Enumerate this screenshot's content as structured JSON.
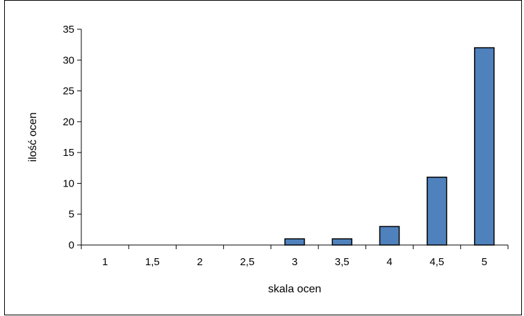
{
  "chart_data": {
    "type": "bar",
    "categories": [
      "1",
      "1,5",
      "2",
      "2,5",
      "3",
      "3,5",
      "4",
      "4,5",
      "5"
    ],
    "values": [
      0,
      0,
      0,
      0,
      1,
      1,
      3,
      11,
      32
    ],
    "title": "",
    "xlabel": "skala ocen",
    "ylabel": "ilość ocen",
    "ylim": [
      0,
      35
    ],
    "yticks": [
      "0",
      "5",
      "10",
      "15",
      "20",
      "25",
      "30",
      "35"
    ],
    "grid": false,
    "legend": "none",
    "colors": {
      "bar_fill": "#4f81bd",
      "bar_stroke": "#000000",
      "axis": "#000000",
      "frame": "#000000"
    }
  }
}
